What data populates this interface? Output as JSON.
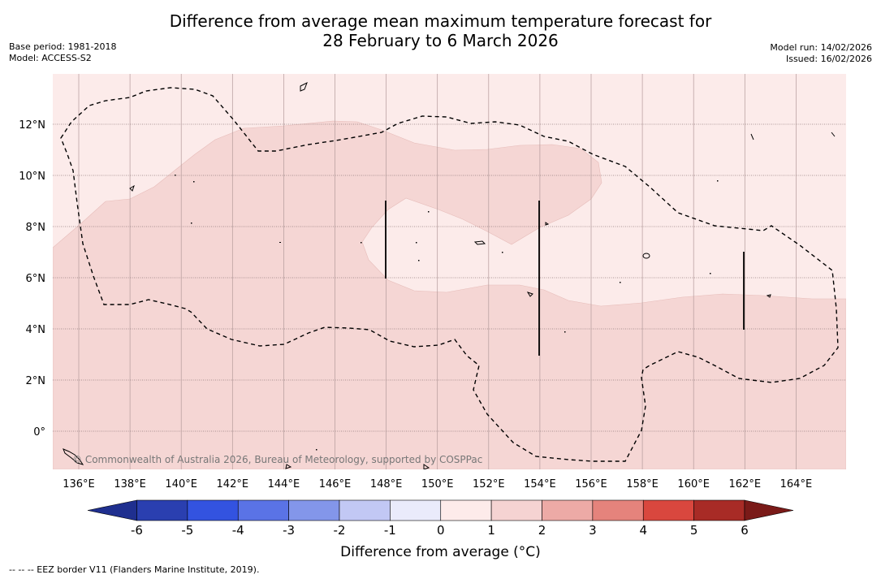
{
  "title_line1": "Difference from average mean maximum temperature forecast for",
  "title_line2": "28 February to 6 March 2026",
  "base_period": "Base period: 1981-2018",
  "model": "Model: ACCESS-S2",
  "model_run": "Model run: 14/02/2026",
  "issued": "Issued: 16/02/2026",
  "copyright": "© Commonwealth of Australia 2026, Bureau of Meteorology, supported by COSPPac",
  "colorbar": {
    "title": "Difference from average (°C)",
    "ticks": [
      "-6",
      "-5",
      "-4",
      "-3",
      "-2",
      "-1",
      "0",
      "1",
      "2",
      "3",
      "4",
      "5",
      "6"
    ],
    "colors": [
      "#1f2f8f",
      "#2a3fb0",
      "#3353e0",
      "#5a73e6",
      "#8396ea",
      "#c2c8f4",
      "#eaebfb",
      "#fdebea",
      "#f5d3d2",
      "#edaaa6",
      "#e5837c",
      "#d9473e",
      "#a82b26",
      "#7a1a18"
    ]
  },
  "map": {
    "x_labels": [
      "136°E",
      "138°E",
      "140°E",
      "142°E",
      "144°E",
      "146°E",
      "148°E",
      "150°E",
      "152°E",
      "154°E",
      "156°E",
      "158°E",
      "160°E",
      "162°E",
      "164°E"
    ],
    "y_labels": [
      "12°N",
      "10°N",
      "8°N",
      "6°N",
      "4°N",
      "2°N",
      "0°"
    ],
    "fill_light": "#fcebea",
    "fill_mid": "#f5d6d4"
  },
  "footer": "--  --  -- EEZ border V11 (Flanders Marine Institute, 2019)."
}
